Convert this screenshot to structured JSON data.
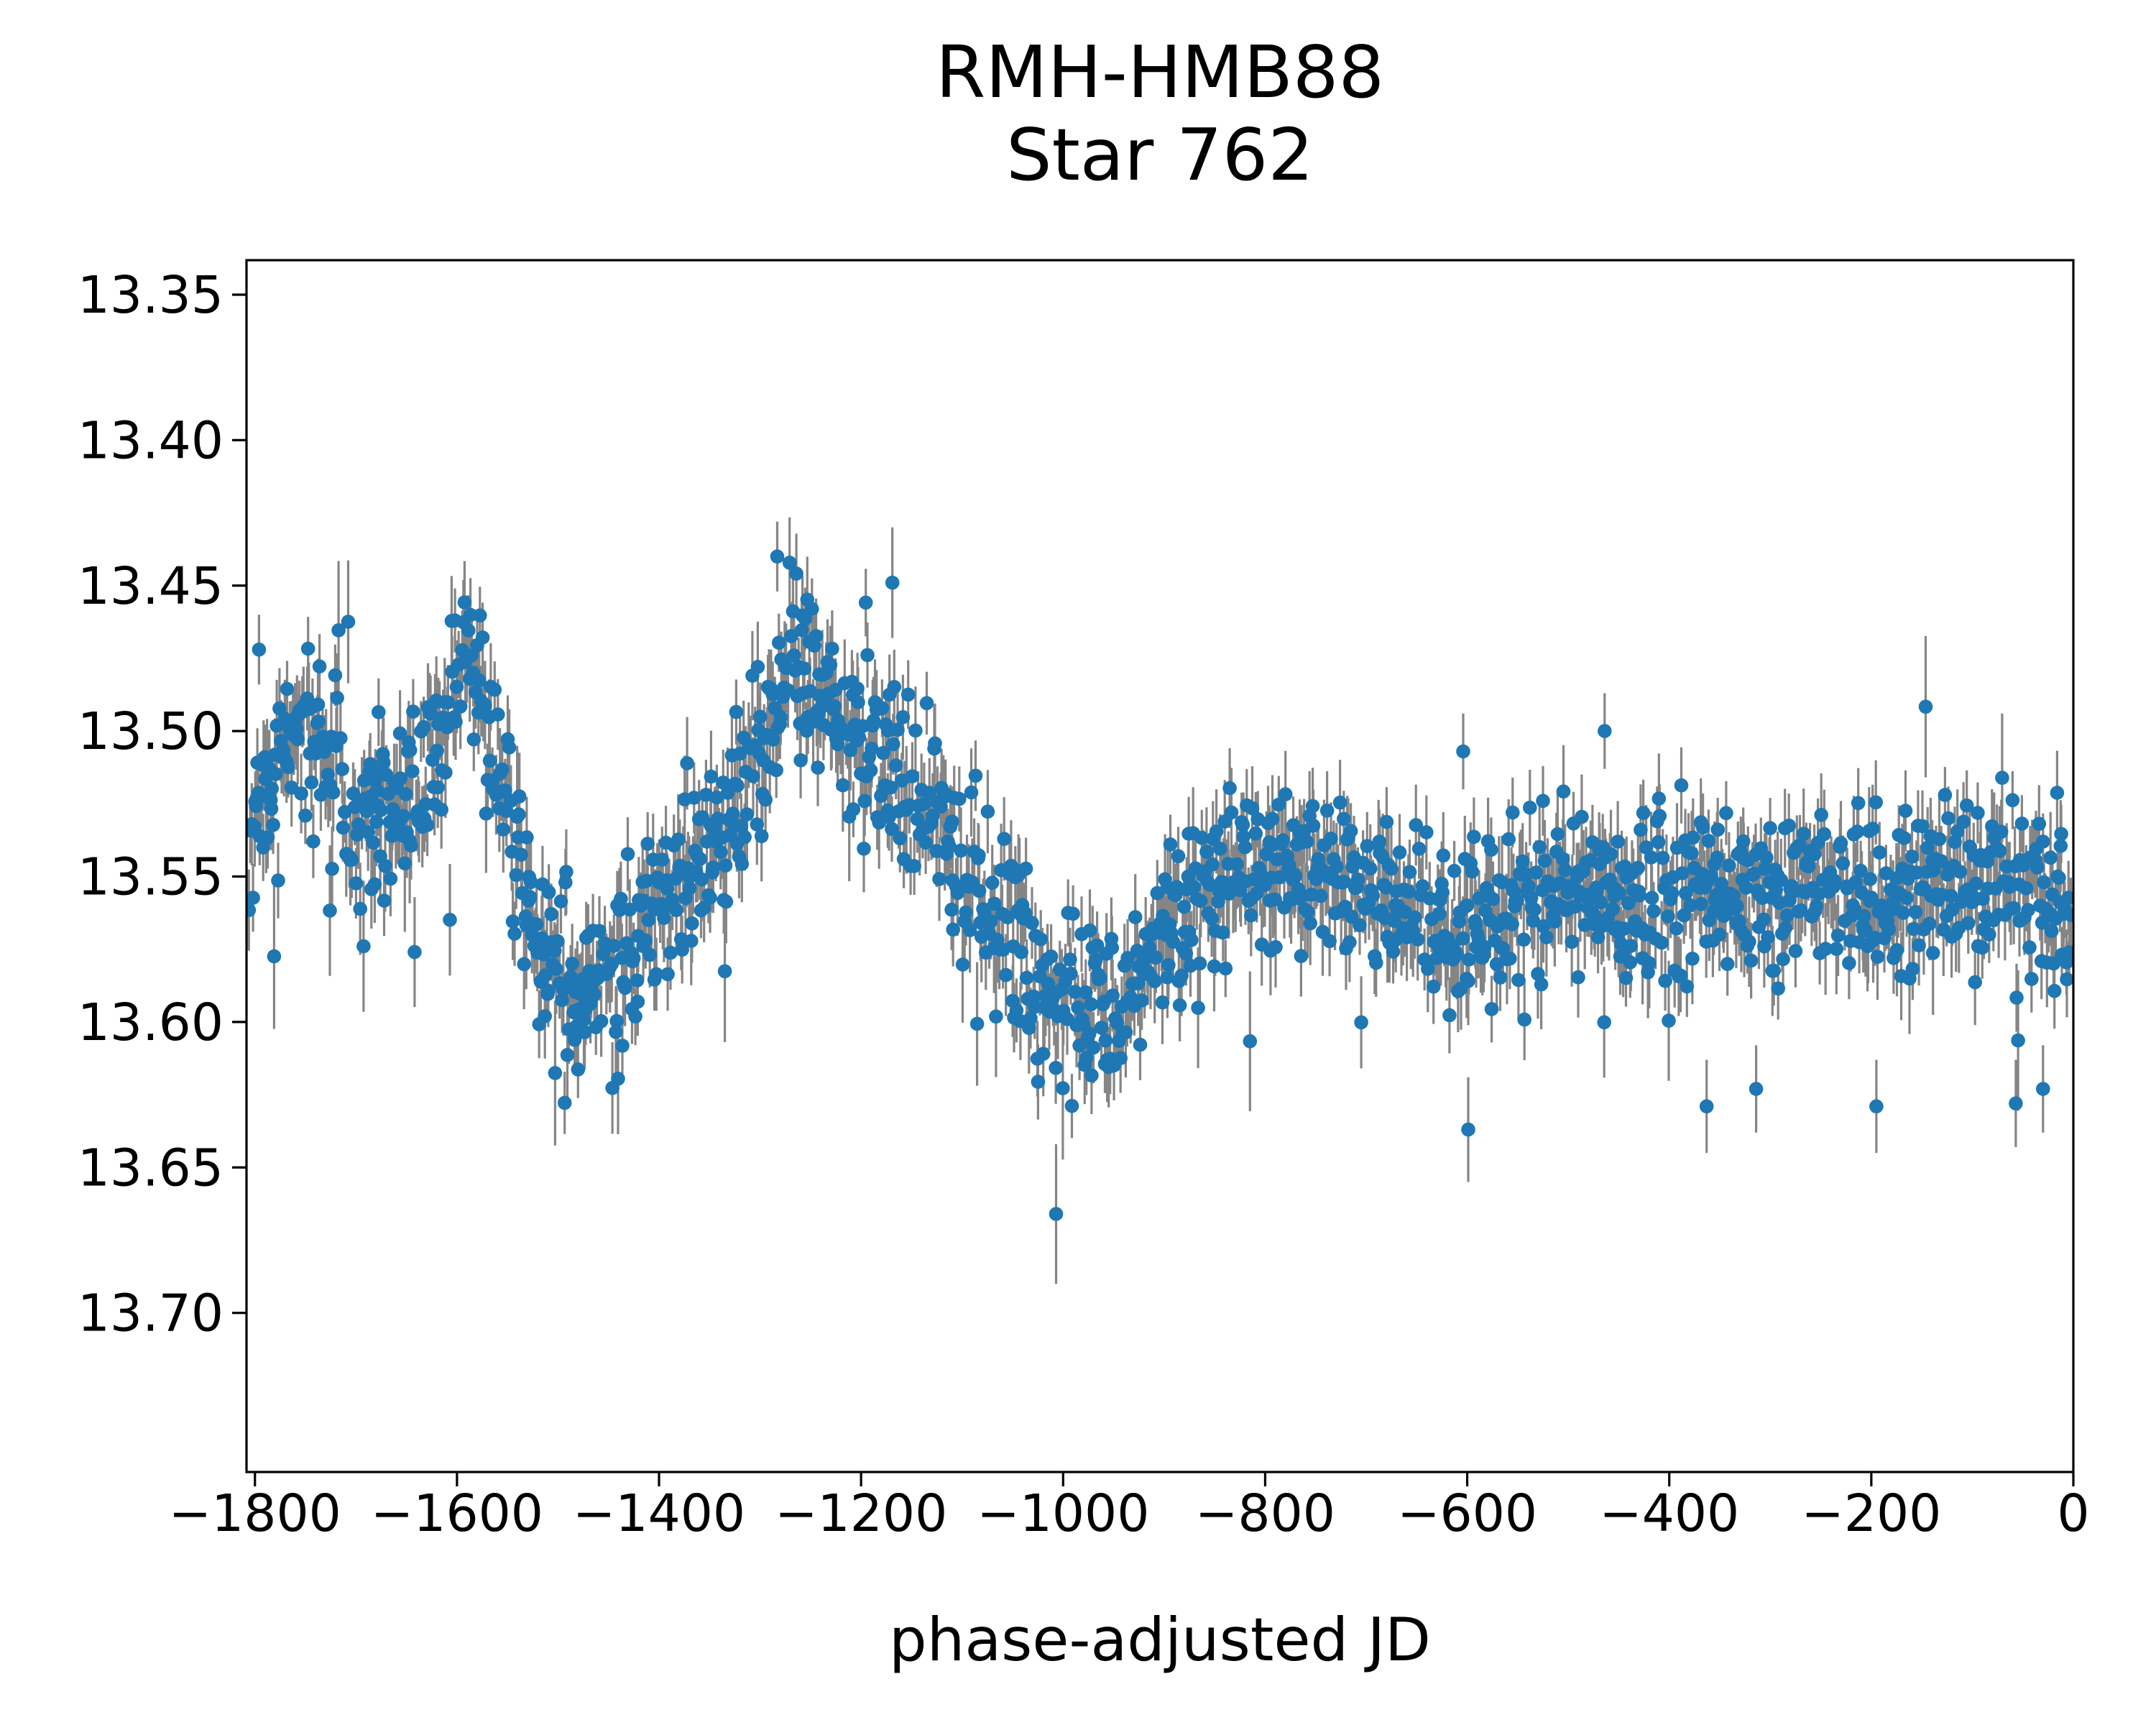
{
  "figure": {
    "title_line1": "RMH-HMB88",
    "title_line2": "Star 762",
    "xlabel": "phase-adjusted JD",
    "background_color": "#ffffff",
    "text_color": "#000000"
  },
  "chart_data": {
    "type": "scatter",
    "title": "RMH-HMB88\nStar 762",
    "title_line1": "RMH-HMB88",
    "title_line2": "Star 762",
    "xlabel": "phase-adjusted JD",
    "ylabel": "",
    "legend": "none",
    "grid": false,
    "y_axis_inverted_magnitudes": true,
    "xlim": [
      -1808.35,
      0
    ],
    "ylim": [
      13.33814,
      13.75469
    ],
    "x_ticks": [
      -1800,
      -1600,
      -1400,
      -1200,
      -1000,
      -800,
      -600,
      -400,
      -200,
      0
    ],
    "x_tick_labels": [
      "−1800",
      "−1600",
      "−1400",
      "−1200",
      "−1000",
      "−800",
      "−600",
      "−400",
      "−200",
      "0"
    ],
    "y_ticks": [
      13.35,
      13.4,
      13.45,
      13.5,
      13.55,
      13.6,
      13.65,
      13.7
    ],
    "y_tick_labels": [
      "13.35",
      "13.40",
      "13.45",
      "13.50",
      "13.55",
      "13.60",
      "13.65",
      "13.70"
    ],
    "marker_color": "#1f77b4",
    "errorbar_color": "#858585",
    "mean_curve_jd_mag": [
      [
        -1807,
        13.53
      ],
      [
        -1799,
        13.526
      ],
      [
        -1791,
        13.521
      ],
      [
        -1783,
        13.515
      ],
      [
        -1774,
        13.509
      ],
      [
        -1765,
        13.503
      ],
      [
        -1756,
        13.499
      ],
      [
        -1747,
        13.497
      ],
      [
        -1738,
        13.499
      ],
      [
        -1729,
        13.505
      ],
      [
        -1720,
        13.513
      ],
      [
        -1711,
        13.521
      ],
      [
        -1702,
        13.528
      ],
      [
        -1693,
        13.532
      ],
      [
        -1683,
        13.533
      ],
      [
        -1672,
        13.531
      ],
      [
        -1661,
        13.528
      ],
      [
        -1649,
        13.523
      ],
      [
        -1637,
        13.518
      ],
      [
        -1625,
        13.511
      ],
      [
        -1613,
        13.5
      ],
      [
        -1603,
        13.488
      ],
      [
        -1595,
        13.479
      ],
      [
        -1588,
        13.476
      ],
      [
        -1581,
        13.48
      ],
      [
        -1572,
        13.49
      ],
      [
        -1561,
        13.508
      ],
      [
        -1549,
        13.529
      ],
      [
        -1537,
        13.549
      ],
      [
        -1525,
        13.565
      ],
      [
        -1513,
        13.577
      ],
      [
        -1500,
        13.585
      ],
      [
        -1487,
        13.59
      ],
      [
        -1473,
        13.592
      ],
      [
        -1459,
        13.59
      ],
      [
        -1445,
        13.586
      ],
      [
        -1430,
        13.579
      ],
      [
        -1414,
        13.571
      ],
      [
        -1397,
        13.561
      ],
      [
        -1380,
        13.551
      ],
      [
        -1363,
        13.543
      ],
      [
        -1346,
        13.536
      ],
      [
        -1329,
        13.528
      ],
      [
        -1313,
        13.518
      ],
      [
        -1298,
        13.505
      ],
      [
        -1285,
        13.492
      ],
      [
        -1273,
        13.483
      ],
      [
        -1261,
        13.479
      ],
      [
        -1249,
        13.481
      ],
      [
        -1236,
        13.487
      ],
      [
        -1222,
        13.493
      ],
      [
        -1207,
        13.498
      ],
      [
        -1191,
        13.503
      ],
      [
        -1174,
        13.509
      ],
      [
        -1157,
        13.516
      ],
      [
        -1140,
        13.523
      ],
      [
        -1123,
        13.531
      ],
      [
        -1106,
        13.54
      ],
      [
        -1089,
        13.55
      ],
      [
        -1072,
        13.56
      ],
      [
        -1055,
        13.569
      ],
      [
        -1038,
        13.578
      ],
      [
        -1021,
        13.585
      ],
      [
        -1004,
        13.591
      ],
      [
        -987,
        13.595
      ],
      [
        -971,
        13.597
      ],
      [
        -956,
        13.595
      ],
      [
        -941,
        13.59
      ],
      [
        -926,
        13.583
      ],
      [
        -910,
        13.575
      ],
      [
        -894,
        13.567
      ],
      [
        -878,
        13.56
      ],
      [
        -861,
        13.554
      ],
      [
        -844,
        13.55
      ],
      [
        -826,
        13.547
      ],
      [
        -807,
        13.545
      ],
      [
        -787,
        13.545
      ],
      [
        -767,
        13.547
      ],
      [
        -747,
        13.549
      ],
      [
        -727,
        13.552
      ],
      [
        -707,
        13.555
      ],
      [
        -687,
        13.558
      ],
      [
        -667,
        13.561
      ],
      [
        -647,
        13.564
      ],
      [
        -628,
        13.566
      ],
      [
        -610,
        13.567
      ],
      [
        -592,
        13.567
      ],
      [
        -574,
        13.565
      ],
      [
        -556,
        13.562
      ],
      [
        -538,
        13.56
      ],
      [
        -520,
        13.557
      ],
      [
        -502,
        13.556
      ],
      [
        -484,
        13.555
      ],
      [
        -466,
        13.555
      ],
      [
        -448,
        13.556
      ],
      [
        -430,
        13.557
      ],
      [
        -412,
        13.558
      ],
      [
        -394,
        13.558
      ],
      [
        -376,
        13.557
      ],
      [
        -358,
        13.556
      ],
      [
        -340,
        13.555
      ],
      [
        -322,
        13.554
      ],
      [
        -304,
        13.553
      ],
      [
        -286,
        13.553
      ],
      [
        -268,
        13.554
      ],
      [
        -250,
        13.555
      ],
      [
        -232,
        13.556
      ],
      [
        -214,
        13.557
      ],
      [
        -196,
        13.558
      ],
      [
        -178,
        13.558
      ],
      [
        -160,
        13.557
      ],
      [
        -142,
        13.555
      ],
      [
        -124,
        13.554
      ],
      [
        -106,
        13.553
      ],
      [
        -88,
        13.552
      ],
      [
        -70,
        13.553
      ],
      [
        -52,
        13.555
      ],
      [
        -34,
        13.557
      ],
      [
        -16,
        13.558
      ],
      [
        0,
        13.559
      ]
    ],
    "notable_points_jd_mag_err": [
      [
        -1796,
        13.472,
        0.012
      ],
      [
        -1602,
        13.462,
        0.011
      ],
      [
        -1283,
        13.44,
        0.012
      ],
      [
        -1169,
        13.449,
        0.019
      ],
      [
        -1007,
        13.666,
        0.024
      ],
      [
        -687,
        13.538,
        0.011
      ],
      [
        -604,
        13.507,
        0.013
      ],
      [
        -599,
        13.637,
        0.018
      ],
      [
        -555,
        13.528,
        0.012
      ],
      [
        -525,
        13.524,
        0.012
      ],
      [
        -464,
        13.5,
        0.013
      ],
      [
        -363,
        13.629,
        0.016
      ],
      [
        -314,
        13.623,
        0.015
      ],
      [
        -195,
        13.629,
        0.016
      ],
      [
        -57,
        13.628,
        0.015
      ],
      [
        -30,
        13.623,
        0.015
      ]
    ],
    "scatter_model": {
      "description": "dense errorbar scatter; points reconstructed from mean_curve plus noise",
      "n_points": 1530,
      "jd_start": -1806,
      "jd_end": -1,
      "mean_cadence_jd": 1.18,
      "sigma_mag_range": [
        0.011,
        0.017
      ],
      "yerr_mag_range": [
        0.0095,
        0.016
      ],
      "outlier_fraction": 0.022,
      "outlier_excursion_mag": [
        0.018,
        0.065
      ],
      "seed": 762
    }
  }
}
